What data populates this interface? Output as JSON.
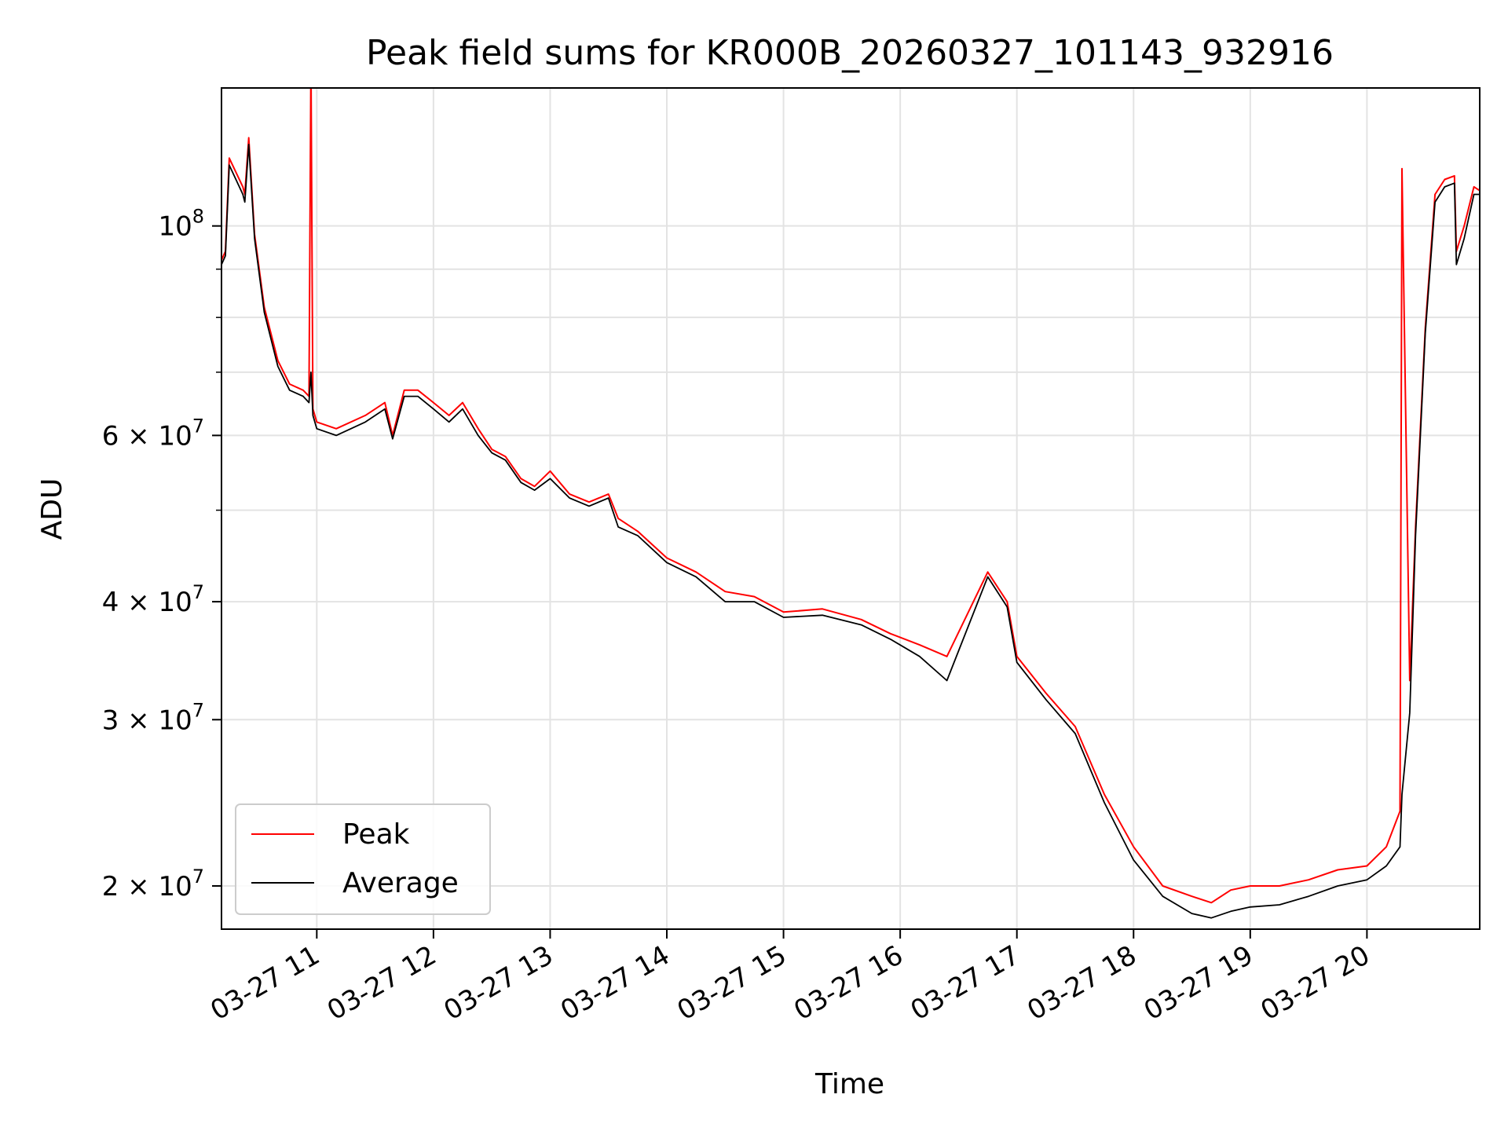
{
  "chart_data": {
    "type": "line",
    "title": "Peak field sums for KR000B_20260327_101143_932916",
    "xlabel": "Time",
    "ylabel": "ADU",
    "yscale": "log",
    "xlim": [
      "03-27 10:11",
      "03-27 20:58"
    ],
    "ylim": [
      18000000,
      140000000
    ],
    "x_ticks": [
      {
        "value": "03-27 11:00",
        "label": "03-27 11"
      },
      {
        "value": "03-27 12:00",
        "label": "03-27 12"
      },
      {
        "value": "03-27 13:00",
        "label": "03-27 13"
      },
      {
        "value": "03-27 14:00",
        "label": "03-27 14"
      },
      {
        "value": "03-27 15:00",
        "label": "03-27 15"
      },
      {
        "value": "03-27 16:00",
        "label": "03-27 16"
      },
      {
        "value": "03-27 17:00",
        "label": "03-27 17"
      },
      {
        "value": "03-27 18:00",
        "label": "03-27 18"
      },
      {
        "value": "03-27 19:00",
        "label": "03-27 19"
      },
      {
        "value": "03-27 20:00",
        "label": "03-27 20"
      }
    ],
    "y_ticks": [
      {
        "value": 100000000,
        "base": "10",
        "exp": "8"
      },
      {
        "value": 60000000,
        "base": "6 × 10",
        "exp": "7"
      },
      {
        "value": 40000000,
        "base": "4 × 10",
        "exp": "7"
      },
      {
        "value": 30000000,
        "base": "3 × 10",
        "exp": "7"
      },
      {
        "value": 20000000,
        "base": "2 × 10",
        "exp": "7"
      }
    ],
    "y_minor_ticks": [
      50000000,
      70000000,
      80000000,
      90000000
    ],
    "grid": true,
    "legend": "lower-left",
    "series": [
      {
        "name": "Peak",
        "color": "#ff0000",
        "x": [
          "03-27 10:11",
          "03-27 10:13",
          "03-27 10:15",
          "03-27 10:22",
          "03-27 10:23",
          "03-27 10:25",
          "03-27 10:28",
          "03-27 10:33",
          "03-27 10:40",
          "03-27 10:46",
          "03-27 10:53",
          "03-27 10:56",
          "03-27 10:57",
          "03-27 10:58",
          "03-27 11:00",
          "03-27 11:10",
          "03-27 11:25",
          "03-27 11:35",
          "03-27 11:39",
          "03-27 11:45",
          "03-27 11:52",
          "03-27 12:00",
          "03-27 12:08",
          "03-27 12:15",
          "03-27 12:23",
          "03-27 12:30",
          "03-27 12:37",
          "03-27 12:45",
          "03-27 12:52",
          "03-27 13:00",
          "03-27 13:10",
          "03-27 13:20",
          "03-27 13:30",
          "03-27 13:35",
          "03-27 13:45",
          "03-27 14:00",
          "03-27 14:15",
          "03-27 14:30",
          "03-27 14:45",
          "03-27 15:00",
          "03-27 15:20",
          "03-27 15:40",
          "03-27 15:55",
          "03-27 16:10",
          "03-27 16:24",
          "03-27 16:45",
          "03-27 16:55",
          "03-27 17:00",
          "03-27 17:15",
          "03-27 17:30",
          "03-27 17:45",
          "03-27 18:00",
          "03-27 18:15",
          "03-27 18:30",
          "03-27 18:40",
          "03-27 18:50",
          "03-27 19:00",
          "03-27 19:15",
          "03-27 19:30",
          "03-27 19:45",
          "03-27 20:00",
          "03-27 20:10",
          "03-27 20:17",
          "03-27 20:18",
          "03-27 20:22",
          "03-27 20:25",
          "03-27 20:30",
          "03-27 20:35",
          "03-27 20:40",
          "03-27 20:45",
          "03-27 20:46",
          "03-27 20:50",
          "03-27 20:55",
          "03-27 20:58"
        ],
        "y": [
          92000000,
          94000000,
          118000000,
          110000000,
          108000000,
          124000000,
          98000000,
          82000000,
          72000000,
          68000000,
          67000000,
          66000000,
          150000000,
          64000000,
          62000000,
          61000000,
          63000000,
          65000000,
          60000000,
          67000000,
          67000000,
          65000000,
          63000000,
          65000000,
          61000000,
          58000000,
          57000000,
          54000000,
          53000000,
          55000000,
          52000000,
          51000000,
          52000000,
          49000000,
          47500000,
          44500000,
          43000000,
          41000000,
          40500000,
          39000000,
          39300000,
          38300000,
          37000000,
          36000000,
          35000000,
          43000000,
          40000000,
          35000000,
          32000000,
          29500000,
          25000000,
          22000000,
          20000000,
          19500000,
          19200000,
          19800000,
          20000000,
          20000000,
          20300000,
          20800000,
          21000000,
          22000000,
          24000000,
          115000000,
          33000000,
          48000000,
          78000000,
          108000000,
          112000000,
          113000000,
          94000000,
          100000000,
          110000000,
          109000000
        ]
      },
      {
        "name": "Average",
        "color": "#000000",
        "x": [
          "03-27 10:11",
          "03-27 10:13",
          "03-27 10:15",
          "03-27 10:22",
          "03-27 10:23",
          "03-27 10:25",
          "03-27 10:28",
          "03-27 10:33",
          "03-27 10:40",
          "03-27 10:46",
          "03-27 10:53",
          "03-27 10:56",
          "03-27 10:57",
          "03-27 10:58",
          "03-27 11:00",
          "03-27 11:10",
          "03-27 11:25",
          "03-27 11:35",
          "03-27 11:39",
          "03-27 11:45",
          "03-27 11:52",
          "03-27 12:00",
          "03-27 12:08",
          "03-27 12:15",
          "03-27 12:23",
          "03-27 12:30",
          "03-27 12:37",
          "03-27 12:45",
          "03-27 12:52",
          "03-27 13:00",
          "03-27 13:10",
          "03-27 13:20",
          "03-27 13:30",
          "03-27 13:35",
          "03-27 13:45",
          "03-27 14:00",
          "03-27 14:15",
          "03-27 14:30",
          "03-27 14:45",
          "03-27 15:00",
          "03-27 15:20",
          "03-27 15:40",
          "03-27 15:55",
          "03-27 16:10",
          "03-27 16:24",
          "03-27 16:45",
          "03-27 16:55",
          "03-27 17:00",
          "03-27 17:15",
          "03-27 17:30",
          "03-27 17:45",
          "03-27 18:00",
          "03-27 18:15",
          "03-27 18:30",
          "03-27 18:40",
          "03-27 18:50",
          "03-27 19:00",
          "03-27 19:15",
          "03-27 19:30",
          "03-27 19:45",
          "03-27 20:00",
          "03-27 20:10",
          "03-27 20:17",
          "03-27 20:18",
          "03-27 20:22",
          "03-27 20:25",
          "03-27 20:30",
          "03-27 20:35",
          "03-27 20:40",
          "03-27 20:45",
          "03-27 20:46",
          "03-27 20:50",
          "03-27 20:55",
          "03-27 20:58"
        ],
        "y": [
          91000000,
          93000000,
          116000000,
          108000000,
          106000000,
          122000000,
          97000000,
          81000000,
          71000000,
          67000000,
          66000000,
          65000000,
          70000000,
          63000000,
          61000000,
          60000000,
          62000000,
          64000000,
          59500000,
          66000000,
          66000000,
          64000000,
          62000000,
          64000000,
          60000000,
          57500000,
          56500000,
          53500000,
          52500000,
          54000000,
          51500000,
          50500000,
          51500000,
          48000000,
          47000000,
          44000000,
          42500000,
          40000000,
          40000000,
          38500000,
          38700000,
          37800000,
          36500000,
          35000000,
          33000000,
          42500000,
          39500000,
          34500000,
          31500000,
          29000000,
          24500000,
          21300000,
          19500000,
          18700000,
          18500000,
          18800000,
          19000000,
          19100000,
          19500000,
          20000000,
          20300000,
          21000000,
          22000000,
          25000000,
          30500000,
          47000000,
          77000000,
          106000000,
          110000000,
          111000000,
          91000000,
          97000000,
          108000000,
          108000000
        ]
      }
    ]
  }
}
